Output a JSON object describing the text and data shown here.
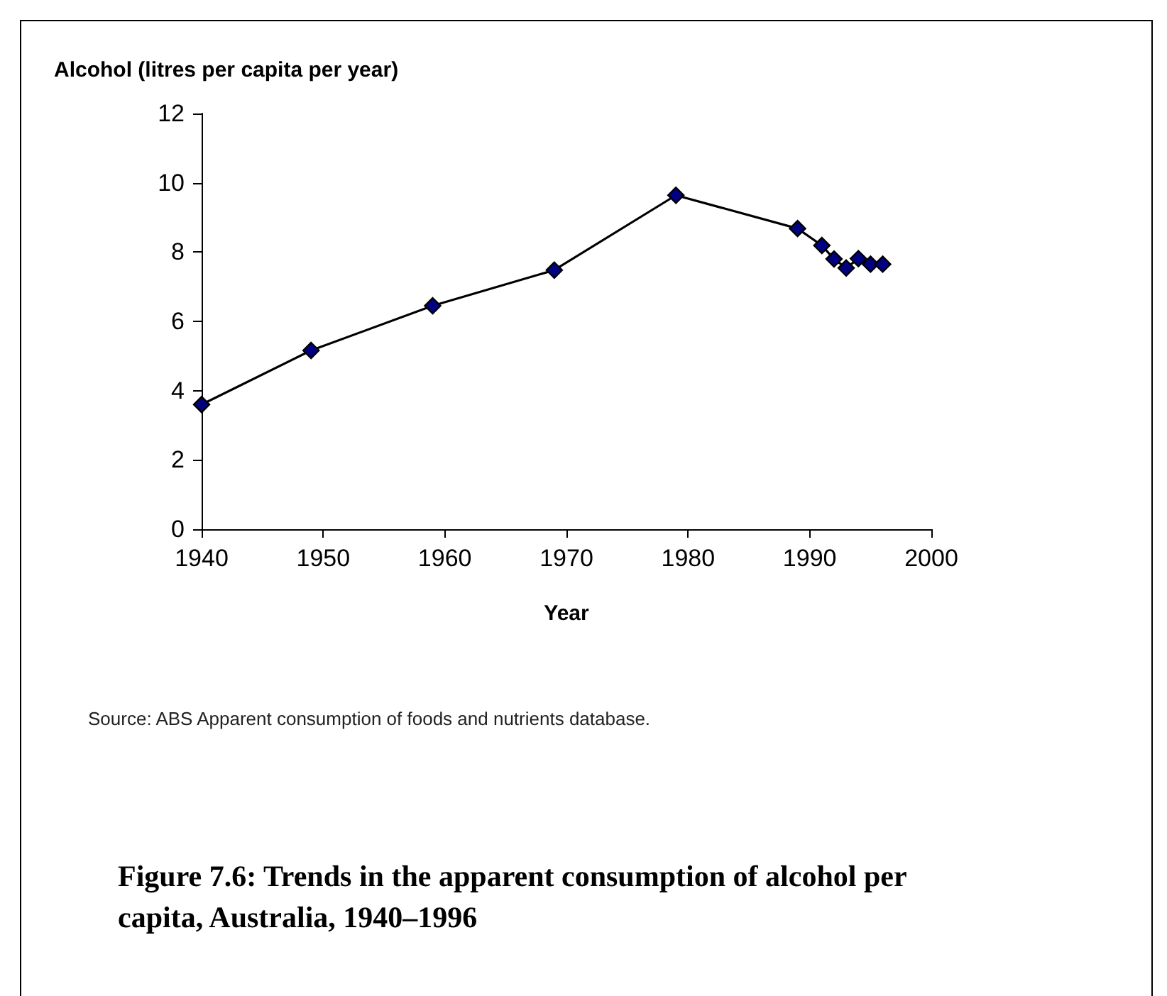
{
  "chart_data": {
    "type": "line",
    "title": "Figure 7.6: Trends in the apparent consumption of alcohol per capita, Australia, 1940–1996",
    "xlabel": "Year",
    "ylabel": "Alcohol (litres per capita per year)",
    "x": [
      1940,
      1949,
      1959,
      1969,
      1979,
      1989,
      1991,
      1992,
      1993,
      1994,
      1995,
      1996
    ],
    "series": [
      {
        "color": "#000080",
        "values": [
          3.6,
          5.16,
          6.45,
          7.48,
          9.64,
          8.68,
          8.19,
          7.8,
          7.54,
          7.81,
          7.65,
          7.65
        ]
      }
    ],
    "xlim": [
      1940,
      2000
    ],
    "xticks": [
      1940,
      1950,
      1960,
      1970,
      1980,
      1990,
      2000
    ],
    "ylim": [
      0,
      12
    ],
    "yticks": [
      0,
      2,
      4,
      6,
      8,
      10,
      12
    ],
    "grid": false,
    "marker": "diamond",
    "line_style": "solid",
    "annotations": [
      "Source: ABS Apparent consumption of foods and nutrients database."
    ]
  }
}
